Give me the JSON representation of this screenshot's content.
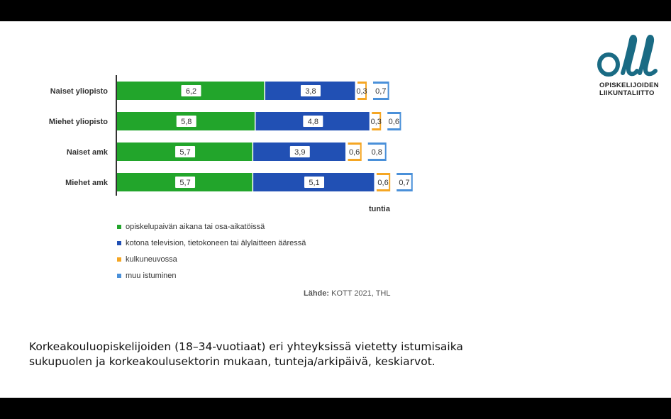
{
  "chart_data": {
    "type": "bar",
    "stacked": true,
    "orientation": "horizontal",
    "categories": [
      "Naiset yliopisto",
      "Miehet yliopisto",
      "Naiset amk",
      "Miehet amk"
    ],
    "series": [
      {
        "name": "opiskelupaivän aikana tai osa-aikatöissä",
        "color": "#22a52b",
        "values": [
          6.2,
          5.8,
          5.7,
          5.7
        ],
        "labels": [
          "6,2",
          "5,8",
          "5,7",
          "5,7"
        ]
      },
      {
        "name": "kotona television, tietokoneen tai älylaitteen ääressä",
        "color": "#2150b4",
        "values": [
          3.8,
          4.8,
          3.9,
          5.1
        ],
        "labels": [
          "3,8",
          "4,8",
          "3,9",
          "5,1"
        ]
      },
      {
        "name": "kulkuneuvossa",
        "color": "#f5a623",
        "values": [
          0.3,
          0.3,
          0.6,
          0.6
        ],
        "labels": [
          "0,3",
          "0,3",
          "0,6",
          "0,6"
        ]
      },
      {
        "name": "muu istuminen",
        "color": "#4a90d9",
        "values": [
          0.7,
          0.6,
          0.8,
          0.7
        ],
        "labels": [
          "0,7",
          "0,6",
          "0,8",
          "0,7"
        ]
      }
    ],
    "xlabel": "tuntia",
    "source_label": "Lähde:",
    "source_text": "KOTT 2021, THL",
    "legend_position": "bottom-left"
  },
  "caption": "Korkeakouluopiskelijoiden (18–34-vuotiaat) eri yhteyksissä vietetty istumisaika sukupuolen ja korkeakoulusektorin mukaan, tunteja/arkipäivä, keskiarvot.",
  "logo": {
    "line1": "OPISKELIJOIDEN",
    "line2": "LIIKUNTALIITTO",
    "color": "#1a6b84"
  }
}
